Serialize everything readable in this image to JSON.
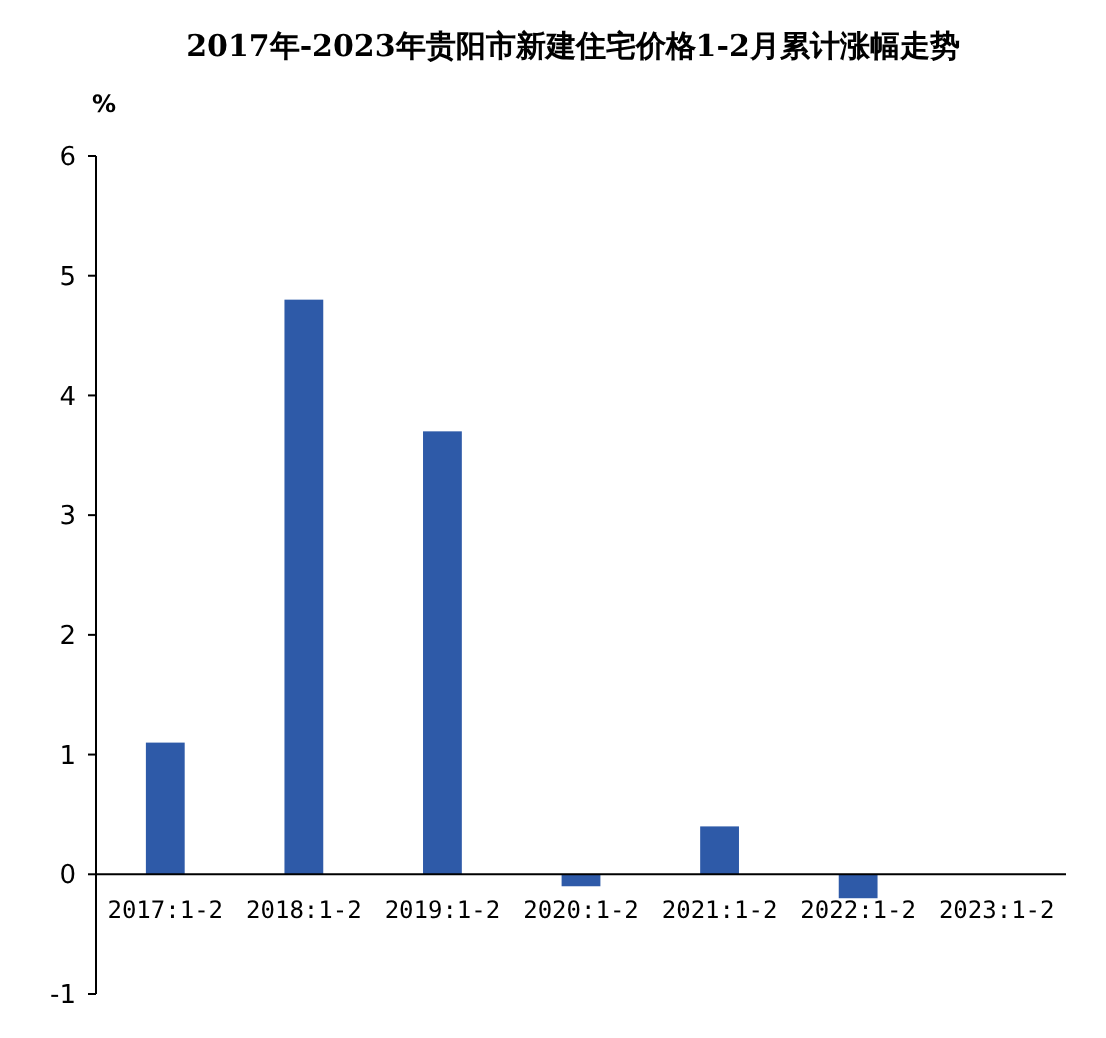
{
  "chart_data": {
    "type": "bar",
    "title": "2017年-2023年贵阳市新建住宅价格1-2月累计涨幅走势",
    "ylabel": "%",
    "categories": [
      "2017:1-2",
      "2018:1-2",
      "2019:1-2",
      "2020:1-2",
      "2021:1-2",
      "2022:1-2",
      "2023:1-2"
    ],
    "values": [
      1.1,
      4.8,
      3.7,
      -0.1,
      0.4,
      -0.2,
      0
    ],
    "color": "#2e5aa8",
    "ylim": [
      -1,
      6
    ],
    "yticks": [
      -1,
      0,
      1,
      2,
      3,
      4,
      5,
      6
    ],
    "grid": false
  }
}
